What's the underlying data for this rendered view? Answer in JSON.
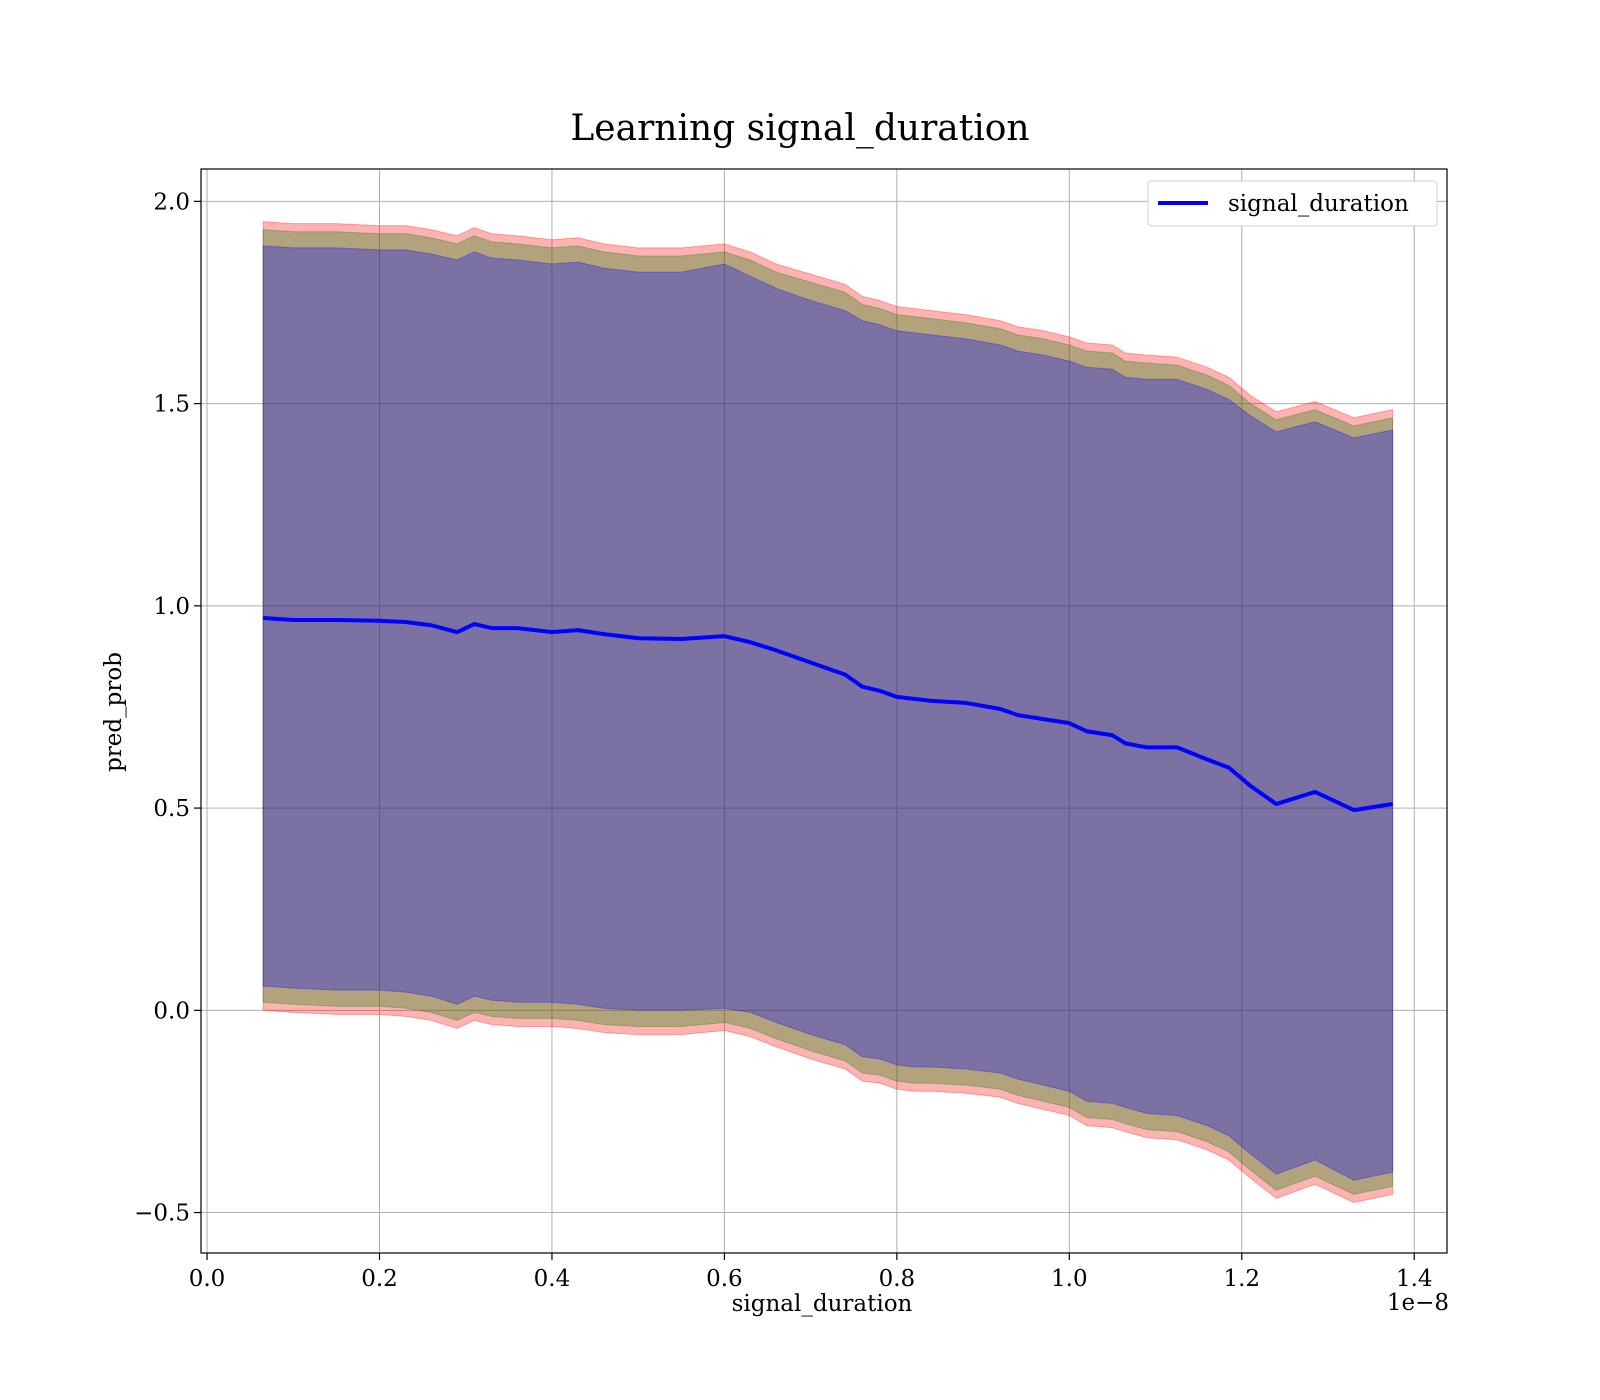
{
  "chart_data": {
    "type": "line",
    "title": "Learning signal_duration",
    "xlabel": "signal_duration",
    "ylabel": "pred_prob",
    "x_offset_text": "1e−8",
    "x_tick_labels": [
      "0.0",
      "0.2",
      "0.4",
      "0.6",
      "0.8",
      "1.0",
      "1.2",
      "1.4"
    ],
    "x_ticks": [
      0.0,
      0.2,
      0.4,
      0.6,
      0.8,
      1.0,
      1.2,
      1.4
    ],
    "y_tick_labels": [
      "−0.5",
      "0.0",
      "0.5",
      "1.0",
      "1.5",
      "2.0"
    ],
    "y_ticks": [
      -0.5,
      0.0,
      0.5,
      1.0,
      1.5,
      2.0
    ],
    "xlim": [
      -0.007,
      1.438
    ],
    "ylim": [
      -0.6,
      2.08
    ],
    "grid": true,
    "legend_position": "top-right",
    "x": [
      0.065,
      0.1,
      0.15,
      0.2,
      0.23,
      0.26,
      0.29,
      0.31,
      0.33,
      0.36,
      0.4,
      0.43,
      0.46,
      0.5,
      0.55,
      0.6,
      0.63,
      0.66,
      0.7,
      0.74,
      0.76,
      0.78,
      0.8,
      0.82,
      0.84,
      0.88,
      0.92,
      0.94,
      0.97,
      1.0,
      1.02,
      1.05,
      1.065,
      1.09,
      1.125,
      1.16,
      1.185,
      1.21,
      1.24,
      1.285,
      1.33,
      1.375
    ],
    "series": [
      {
        "name": "signal_duration",
        "color": "#0000ff",
        "values": [
          0.97,
          0.965,
          0.965,
          0.963,
          0.96,
          0.952,
          0.935,
          0.955,
          0.945,
          0.945,
          0.935,
          0.94,
          0.93,
          0.92,
          0.918,
          0.925,
          0.91,
          0.89,
          0.86,
          0.83,
          0.8,
          0.79,
          0.775,
          0.77,
          0.765,
          0.76,
          0.745,
          0.73,
          0.72,
          0.71,
          0.69,
          0.68,
          0.66,
          0.65,
          0.65,
          0.62,
          0.6,
          0.555,
          0.51,
          0.54,
          0.495,
          0.51
        ]
      }
    ],
    "bands": [
      {
        "color": "#ff0000",
        "opacity": 0.3,
        "upper": [
          1.95,
          1.945,
          1.945,
          1.94,
          1.94,
          1.93,
          1.915,
          1.935,
          1.92,
          1.915,
          1.905,
          1.91,
          1.895,
          1.885,
          1.885,
          1.895,
          1.875,
          1.845,
          1.82,
          1.795,
          1.765,
          1.755,
          1.74,
          1.735,
          1.73,
          1.72,
          1.705,
          1.69,
          1.68,
          1.665,
          1.65,
          1.645,
          1.625,
          1.62,
          1.615,
          1.59,
          1.565,
          1.52,
          1.48,
          1.505,
          1.465,
          1.485
        ],
        "lower": [
          0.0,
          -0.005,
          -0.01,
          -0.01,
          -0.015,
          -0.025,
          -0.045,
          -0.025,
          -0.035,
          -0.04,
          -0.04,
          -0.045,
          -0.055,
          -0.06,
          -0.06,
          -0.05,
          -0.065,
          -0.09,
          -0.12,
          -0.145,
          -0.175,
          -0.18,
          -0.195,
          -0.2,
          -0.2,
          -0.205,
          -0.215,
          -0.23,
          -0.245,
          -0.26,
          -0.285,
          -0.29,
          -0.3,
          -0.315,
          -0.32,
          -0.345,
          -0.37,
          -0.415,
          -0.465,
          -0.43,
          -0.475,
          -0.455
        ]
      },
      {
        "color": "#008000",
        "opacity": 0.3,
        "upper": [
          1.93,
          1.925,
          1.925,
          1.92,
          1.92,
          1.91,
          1.895,
          1.915,
          1.9,
          1.895,
          1.885,
          1.89,
          1.875,
          1.865,
          1.865,
          1.875,
          1.855,
          1.825,
          1.8,
          1.775,
          1.745,
          1.735,
          1.72,
          1.715,
          1.71,
          1.7,
          1.685,
          1.67,
          1.66,
          1.645,
          1.63,
          1.625,
          1.605,
          1.6,
          1.595,
          1.57,
          1.545,
          1.5,
          1.46,
          1.485,
          1.445,
          1.465
        ],
        "lower": [
          0.02,
          0.015,
          0.01,
          0.01,
          0.005,
          -0.005,
          -0.025,
          -0.005,
          -0.015,
          -0.02,
          -0.02,
          -0.025,
          -0.035,
          -0.04,
          -0.04,
          -0.03,
          -0.045,
          -0.07,
          -0.1,
          -0.125,
          -0.155,
          -0.16,
          -0.175,
          -0.18,
          -0.18,
          -0.185,
          -0.195,
          -0.21,
          -0.225,
          -0.24,
          -0.265,
          -0.27,
          -0.28,
          -0.295,
          -0.3,
          -0.325,
          -0.35,
          -0.395,
          -0.445,
          -0.41,
          -0.455,
          -0.435
        ]
      },
      {
        "color": "#0000ff",
        "opacity": 0.3,
        "upper": [
          1.89,
          1.885,
          1.885,
          1.88,
          1.88,
          1.87,
          1.855,
          1.875,
          1.86,
          1.855,
          1.845,
          1.85,
          1.835,
          1.825,
          1.825,
          1.845,
          1.815,
          1.785,
          1.755,
          1.73,
          1.705,
          1.695,
          1.68,
          1.675,
          1.67,
          1.66,
          1.645,
          1.63,
          1.62,
          1.605,
          1.59,
          1.585,
          1.565,
          1.56,
          1.56,
          1.535,
          1.51,
          1.47,
          1.43,
          1.455,
          1.415,
          1.435
        ],
        "lower": [
          0.06,
          0.055,
          0.05,
          0.05,
          0.045,
          0.035,
          0.015,
          0.035,
          0.025,
          0.02,
          0.02,
          0.015,
          0.005,
          0.0,
          0.0,
          0.005,
          -0.005,
          -0.03,
          -0.06,
          -0.085,
          -0.115,
          -0.12,
          -0.135,
          -0.14,
          -0.14,
          -0.145,
          -0.155,
          -0.17,
          -0.185,
          -0.2,
          -0.225,
          -0.23,
          -0.24,
          -0.255,
          -0.26,
          -0.285,
          -0.31,
          -0.355,
          -0.405,
          -0.37,
          -0.42,
          -0.4
        ]
      }
    ]
  }
}
